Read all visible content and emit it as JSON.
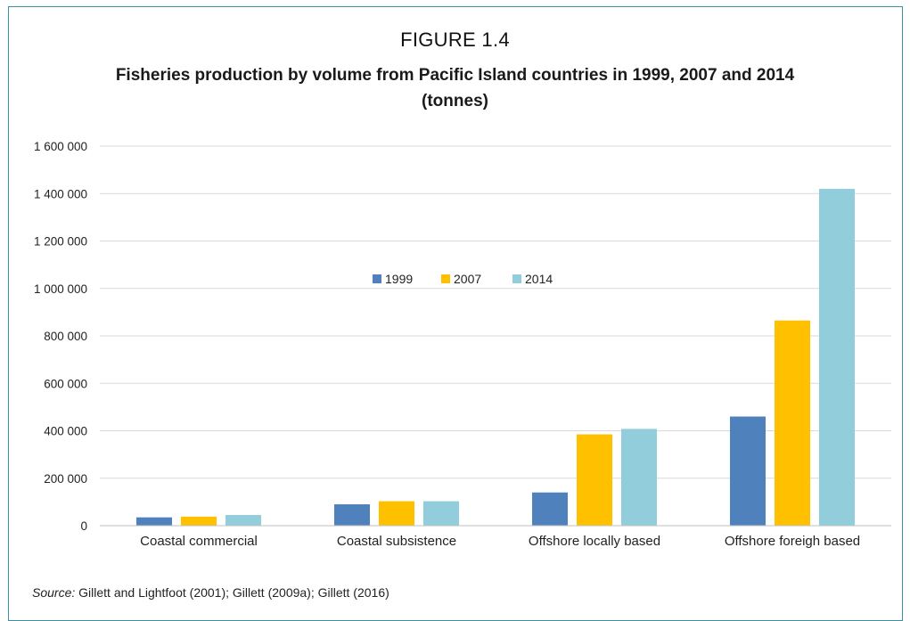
{
  "figure": {
    "label": "FIGURE 1.4",
    "title_line1": "Fisheries production by volume from Pacific Island countries in 1999, 2007 and 2014",
    "title_line2": "(tonnes)"
  },
  "source": {
    "prefix": "Source:",
    "text": " Gillett and Lightfoot (2001); Gillett (2009a); Gillett (2016)"
  },
  "colors": {
    "series_1999": "#4f81bd",
    "series_2007": "#ffc000",
    "series_2014": "#92cddc",
    "frame": "#3d8fa6",
    "grid": "#d9d9d9"
  },
  "chart_data": {
    "type": "bar",
    "title": "Fisheries production by volume from Pacific Island countries in 1999, 2007 and 2014 (tonnes)",
    "xlabel": "",
    "ylabel": "",
    "ylim": [
      0,
      1600000
    ],
    "yticks": [
      0,
      200000,
      400000,
      600000,
      800000,
      1000000,
      1200000,
      1400000,
      1600000
    ],
    "ytick_labels": [
      "0",
      "200 000",
      "400 000",
      "600 000",
      "800 000",
      "1 000 000",
      "1 200 000",
      "1 400 000",
      "1 600 000"
    ],
    "grid": true,
    "legend_position": "inside-center-top",
    "categories": [
      "Coastal commercial",
      "Coastal subsistence",
      "Offshore locally based",
      "Offshore foreigh based"
    ],
    "series": [
      {
        "name": "1999",
        "color": "#4f81bd",
        "values": [
          35000,
          90000,
          140000,
          460000
        ]
      },
      {
        "name": "2007",
        "color": "#ffc000",
        "values": [
          38000,
          103000,
          385000,
          865000
        ]
      },
      {
        "name": "2014",
        "color": "#92cddc",
        "values": [
          45000,
          103000,
          408000,
          1420000
        ]
      }
    ]
  }
}
